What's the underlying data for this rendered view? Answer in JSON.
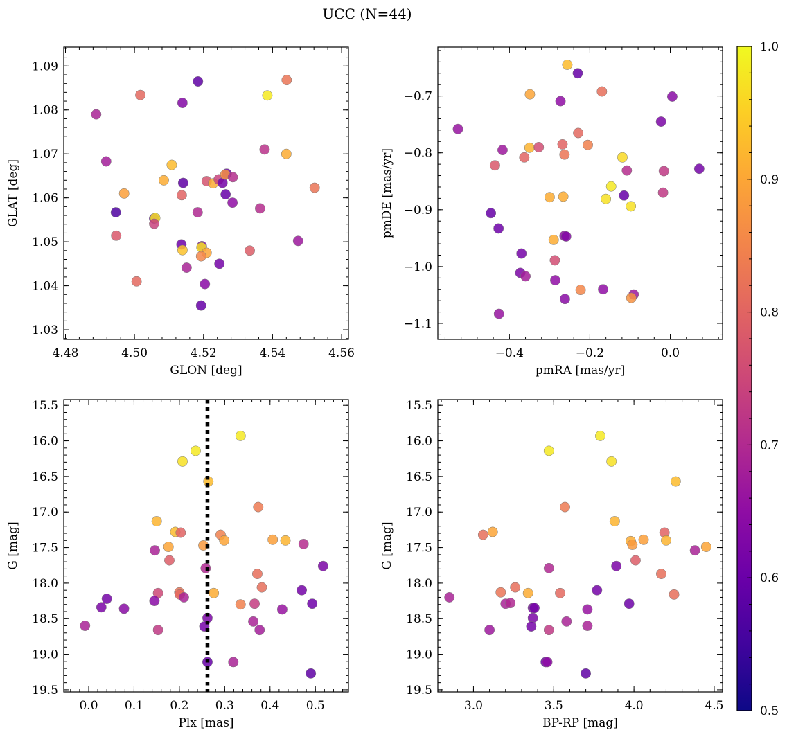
{
  "figure": {
    "title": "UCC (N=44)"
  },
  "colorbar": {
    "range": [
      0.5,
      1.0
    ],
    "ticks": [
      0.5,
      0.6,
      0.7,
      0.8,
      0.9,
      1.0
    ],
    "tick_labels": [
      "0.5",
      "0.6",
      "0.7",
      "0.8",
      "0.9",
      "1.0"
    ],
    "colormap": "plasma"
  },
  "reference_line": {
    "panel": "plx_g",
    "axis": "x",
    "value": 0.262,
    "style": "dotted",
    "color": "#000000"
  },
  "chart_data": [
    {
      "id": "glon_glat",
      "type": "scatter",
      "title": "",
      "xlabel": "GLON [deg]",
      "ylabel": "GLAT [deg]",
      "xlim": [
        4.4795,
        4.562
      ],
      "ylim": [
        1.0278,
        1.0943
      ],
      "x_invert": false,
      "y_invert": false,
      "xticks": [
        4.48,
        4.5,
        4.52,
        4.54,
        4.56
      ],
      "xtick_labels": [
        "4.48",
        "4.50",
        "4.52",
        "4.54",
        "4.56"
      ],
      "yticks": [
        1.03,
        1.04,
        1.05,
        1.06,
        1.07,
        1.08,
        1.09
      ],
      "ytick_labels": [
        "1.03",
        "1.04",
        "1.05",
        "1.06",
        "1.07",
        "1.08",
        "1.09"
      ],
      "points": [
        {
          "x": 4.4889,
          "y": 1.079,
          "c": 0.66
        },
        {
          "x": 4.5017,
          "y": 1.0834,
          "c": 0.79
        },
        {
          "x": 4.5184,
          "y": 1.0865,
          "c": 0.55
        },
        {
          "x": 4.5441,
          "y": 1.0868,
          "c": 0.81
        },
        {
          "x": 4.5385,
          "y": 1.0833,
          "c": 0.98
        },
        {
          "x": 4.5139,
          "y": 1.0816,
          "c": 0.6
        },
        {
          "x": 4.4918,
          "y": 1.0683,
          "c": 0.65
        },
        {
          "x": 4.5108,
          "y": 1.0675,
          "c": 0.92
        },
        {
          "x": 4.5377,
          "y": 1.071,
          "c": 0.69
        },
        {
          "x": 4.544,
          "y": 1.07,
          "c": 0.9
        },
        {
          "x": 4.497,
          "y": 1.061,
          "c": 0.88
        },
        {
          "x": 4.4946,
          "y": 1.0567,
          "c": 0.53
        },
        {
          "x": 4.5085,
          "y": 1.064,
          "c": 0.9
        },
        {
          "x": 4.5141,
          "y": 1.0634,
          "c": 0.55
        },
        {
          "x": 4.5209,
          "y": 1.0638,
          "c": 0.75
        },
        {
          "x": 4.5228,
          "y": 1.0633,
          "c": 0.9
        },
        {
          "x": 4.5244,
          "y": 1.0642,
          "c": 0.72
        },
        {
          "x": 4.5255,
          "y": 1.0634,
          "c": 0.58
        },
        {
          "x": 4.5267,
          "y": 1.0655,
          "c": 0.57
        },
        {
          "x": 4.5263,
          "y": 1.0653,
          "c": 0.86
        },
        {
          "x": 4.5285,
          "y": 1.0647,
          "c": 0.68
        },
        {
          "x": 4.5522,
          "y": 1.0623,
          "c": 0.81
        },
        {
          "x": 4.5057,
          "y": 1.0553,
          "c": 0.55
        },
        {
          "x": 4.506,
          "y": 1.0554,
          "c": 0.97
        },
        {
          "x": 4.5057,
          "y": 1.0541,
          "c": 0.72
        },
        {
          "x": 4.4947,
          "y": 1.0514,
          "c": 0.76
        },
        {
          "x": 4.5137,
          "y": 1.0606,
          "c": 0.78
        },
        {
          "x": 4.5183,
          "y": 1.0567,
          "c": 0.67
        },
        {
          "x": 4.5264,
          "y": 1.0608,
          "c": 0.56
        },
        {
          "x": 4.5284,
          "y": 1.0589,
          "c": 0.62
        },
        {
          "x": 4.5364,
          "y": 1.0576,
          "c": 0.68
        },
        {
          "x": 4.5136,
          "y": 1.0494,
          "c": 0.57
        },
        {
          "x": 4.5139,
          "y": 1.0481,
          "c": 0.93
        },
        {
          "x": 4.5195,
          "y": 1.049,
          "c": 0.6
        },
        {
          "x": 4.5194,
          "y": 1.0487,
          "c": 0.97
        },
        {
          "x": 4.5209,
          "y": 1.0475,
          "c": 0.89
        },
        {
          "x": 4.5193,
          "y": 1.0467,
          "c": 0.84
        },
        {
          "x": 4.5334,
          "y": 1.048,
          "c": 0.77
        },
        {
          "x": 4.5474,
          "y": 1.0502,
          "c": 0.64
        },
        {
          "x": 4.5151,
          "y": 1.0441,
          "c": 0.66
        },
        {
          "x": 4.5246,
          "y": 1.045,
          "c": 0.58
        },
        {
          "x": 4.5006,
          "y": 1.041,
          "c": 0.79
        },
        {
          "x": 4.5204,
          "y": 1.0404,
          "c": 0.61
        },
        {
          "x": 4.5193,
          "y": 1.0355,
          "c": 0.56
        }
      ]
    },
    {
      "id": "pmra_pmde",
      "type": "scatter",
      "title": "",
      "xlabel": "pmRA [mas/yr]",
      "ylabel": "pmDE [mas/yr]",
      "xlim": [
        -0.578,
        0.13
      ],
      "ylim": [
        -1.128,
        -0.614
      ],
      "x_invert": false,
      "y_invert": false,
      "xticks": [
        -0.4,
        -0.2,
        0.0
      ],
      "xtick_labels": [
        "−0.4",
        "−0.2",
        "0.0"
      ],
      "yticks": [
        -1.1,
        -1.0,
        -0.9,
        -0.8,
        -0.7
      ],
      "ytick_labels": [
        "−1.1",
        "−1.0",
        "−0.9",
        "−0.8",
        "−0.7"
      ],
      "points": [
        {
          "x": -0.256,
          "y": -0.645,
          "c": 0.92
        },
        {
          "x": -0.23,
          "y": -0.66,
          "c": 0.56
        },
        {
          "x": -0.349,
          "y": -0.697,
          "c": 0.89
        },
        {
          "x": -0.17,
          "y": -0.692,
          "c": 0.8
        },
        {
          "x": -0.273,
          "y": -0.709,
          "c": 0.62
        },
        {
          "x": 0.005,
          "y": -0.701,
          "c": 0.61
        },
        {
          "x": -0.023,
          "y": -0.745,
          "c": 0.59
        },
        {
          "x": -0.528,
          "y": -0.758,
          "c": 0.63
        },
        {
          "x": -0.229,
          "y": -0.765,
          "c": 0.79
        },
        {
          "x": -0.35,
          "y": -0.791,
          "c": 0.91
        },
        {
          "x": -0.327,
          "y": -0.79,
          "c": 0.74
        },
        {
          "x": -0.268,
          "y": -0.785,
          "c": 0.78
        },
        {
          "x": -0.205,
          "y": -0.786,
          "c": 0.83
        },
        {
          "x": -0.417,
          "y": -0.795,
          "c": 0.64
        },
        {
          "x": -0.363,
          "y": -0.808,
          "c": 0.78
        },
        {
          "x": -0.263,
          "y": -0.803,
          "c": 0.81
        },
        {
          "x": -0.119,
          "y": -0.808,
          "c": 0.96
        },
        {
          "x": -0.436,
          "y": -0.822,
          "c": 0.76
        },
        {
          "x": -0.108,
          "y": -0.831,
          "c": 0.68
        },
        {
          "x": -0.016,
          "y": -0.832,
          "c": 0.7
        },
        {
          "x": 0.072,
          "y": -0.828,
          "c": 0.58
        },
        {
          "x": -0.147,
          "y": -0.859,
          "c": 0.98
        },
        {
          "x": -0.018,
          "y": -0.87,
          "c": 0.7
        },
        {
          "x": -0.3,
          "y": -0.878,
          "c": 0.9
        },
        {
          "x": -0.266,
          "y": -0.877,
          "c": 0.9
        },
        {
          "x": -0.16,
          "y": -0.881,
          "c": 0.97
        },
        {
          "x": -0.115,
          "y": -0.875,
          "c": 0.56
        },
        {
          "x": -0.098,
          "y": -0.894,
          "c": 0.97
        },
        {
          "x": -0.446,
          "y": -0.906,
          "c": 0.56
        },
        {
          "x": -0.427,
          "y": -0.933,
          "c": 0.57
        },
        {
          "x": -0.263,
          "y": -0.946,
          "c": 0.62
        },
        {
          "x": -0.259,
          "y": -0.947,
          "c": 0.6
        },
        {
          "x": -0.29,
          "y": -0.953,
          "c": 0.9
        },
        {
          "x": -0.37,
          "y": -0.977,
          "c": 0.58
        },
        {
          "x": -0.287,
          "y": -0.989,
          "c": 0.74
        },
        {
          "x": -0.373,
          "y": -1.011,
          "c": 0.59
        },
        {
          "x": -0.36,
          "y": -1.017,
          "c": 0.65
        },
        {
          "x": -0.286,
          "y": -1.024,
          "c": 0.62
        },
        {
          "x": -0.223,
          "y": -1.041,
          "c": 0.84
        },
        {
          "x": -0.167,
          "y": -1.04,
          "c": 0.62
        },
        {
          "x": -0.091,
          "y": -1.049,
          "c": 0.64
        },
        {
          "x": -0.097,
          "y": -1.055,
          "c": 0.86
        },
        {
          "x": -0.262,
          "y": -1.057,
          "c": 0.61
        },
        {
          "x": -0.426,
          "y": -1.083,
          "c": 0.63
        }
      ]
    },
    {
      "id": "plx_g",
      "type": "scatter",
      "title": "",
      "xlabel": "Plx [mas]",
      "ylabel": "G [mag]",
      "xlim": [
        -0.055,
        0.573
      ],
      "ylim": [
        19.53,
        15.42
      ],
      "x_invert": false,
      "y_invert": true,
      "xticks": [
        0.0,
        0.1,
        0.2,
        0.3,
        0.4,
        0.5
      ],
      "xtick_labels": [
        "0.0",
        "0.1",
        "0.2",
        "0.3",
        "0.4",
        "0.5"
      ],
      "yticks": [
        15.5,
        16.0,
        16.5,
        17.0,
        17.5,
        18.0,
        18.5,
        19.0,
        19.5
      ],
      "ytick_labels": [
        "15.5",
        "16.0",
        "16.5",
        "17.0",
        "17.5",
        "18.0",
        "18.5",
        "19.0",
        "19.5"
      ],
      "points": [
        {
          "x": 0.335,
          "y": 15.93,
          "c": 0.98
        },
        {
          "x": 0.236,
          "y": 16.14,
          "c": 0.98
        },
        {
          "x": 0.207,
          "y": 16.29,
          "c": 0.97
        },
        {
          "x": 0.264,
          "y": 16.57,
          "c": 0.92
        },
        {
          "x": 0.374,
          "y": 16.93,
          "c": 0.82
        },
        {
          "x": 0.15,
          "y": 17.13,
          "c": 0.91
        },
        {
          "x": 0.191,
          "y": 17.28,
          "c": 0.92
        },
        {
          "x": 0.203,
          "y": 17.29,
          "c": 0.78
        },
        {
          "x": 0.291,
          "y": 17.32,
          "c": 0.83
        },
        {
          "x": 0.299,
          "y": 17.4,
          "c": 0.89
        },
        {
          "x": 0.406,
          "y": 17.39,
          "c": 0.88
        },
        {
          "x": 0.434,
          "y": 17.4,
          "c": 0.91
        },
        {
          "x": 0.474,
          "y": 17.45,
          "c": 0.68
        },
        {
          "x": 0.253,
          "y": 17.47,
          "c": 0.87
        },
        {
          "x": 0.176,
          "y": 17.49,
          "c": 0.89
        },
        {
          "x": 0.146,
          "y": 17.54,
          "c": 0.66
        },
        {
          "x": 0.178,
          "y": 17.68,
          "c": 0.77
        },
        {
          "x": 0.517,
          "y": 17.76,
          "c": 0.59
        },
        {
          "x": 0.258,
          "y": 17.79,
          "c": 0.67
        },
        {
          "x": 0.372,
          "y": 17.87,
          "c": 0.8
        },
        {
          "x": 0.382,
          "y": 18.06,
          "c": 0.8
        },
        {
          "x": 0.47,
          "y": 18.1,
          "c": 0.58
        },
        {
          "x": 0.2,
          "y": 18.13,
          "c": 0.81
        },
        {
          "x": 0.153,
          "y": 18.14,
          "c": 0.73
        },
        {
          "x": 0.276,
          "y": 18.14,
          "c": 0.9
        },
        {
          "x": 0.201,
          "y": 18.16,
          "c": 0.79
        },
        {
          "x": 0.21,
          "y": 18.2,
          "c": 0.66
        },
        {
          "x": 0.04,
          "y": 18.22,
          "c": 0.58
        },
        {
          "x": 0.145,
          "y": 18.25,
          "c": 0.61
        },
        {
          "x": 0.335,
          "y": 18.3,
          "c": 0.83
        },
        {
          "x": 0.366,
          "y": 18.29,
          "c": 0.71
        },
        {
          "x": 0.493,
          "y": 18.29,
          "c": 0.57
        },
        {
          "x": 0.028,
          "y": 18.34,
          "c": 0.59
        },
        {
          "x": 0.078,
          "y": 18.36,
          "c": 0.61
        },
        {
          "x": 0.427,
          "y": 18.37,
          "c": 0.63
        },
        {
          "x": 0.262,
          "y": 18.49,
          "c": 0.59
        },
        {
          "x": 0.363,
          "y": 18.54,
          "c": 0.66
        },
        {
          "x": -0.008,
          "y": 18.6,
          "c": 0.66
        },
        {
          "x": 0.255,
          "y": 18.61,
          "c": 0.58
        },
        {
          "x": 0.153,
          "y": 18.66,
          "c": 0.7
        },
        {
          "x": 0.377,
          "y": 18.66,
          "c": 0.65
        },
        {
          "x": 0.262,
          "y": 19.11,
          "c": 0.56
        },
        {
          "x": 0.319,
          "y": 19.11,
          "c": 0.66
        },
        {
          "x": 0.49,
          "y": 19.27,
          "c": 0.55
        }
      ]
    },
    {
      "id": "bprp_g",
      "type": "scatter",
      "title": "",
      "xlabel": "BP-RP [mag]",
      "ylabel": "G [mag]",
      "xlim": [
        2.778,
        4.552
      ],
      "ylim": [
        19.53,
        15.42
      ],
      "x_invert": false,
      "y_invert": true,
      "xticks": [
        3.0,
        3.5,
        4.0,
        4.5
      ],
      "xtick_labels": [
        "3.0",
        "3.5",
        "4.0",
        "4.5"
      ],
      "yticks": [
        15.5,
        16.0,
        16.5,
        17.0,
        17.5,
        18.0,
        18.5,
        19.0,
        19.5
      ],
      "ytick_labels": [
        "15.5",
        "16.0",
        "16.5",
        "17.0",
        "17.5",
        "18.0",
        "18.5",
        "19.0",
        "19.5"
      ],
      "points": [
        {
          "x": 3.79,
          "y": 15.93,
          "c": 0.98
        },
        {
          "x": 3.47,
          "y": 16.14,
          "c": 0.98
        },
        {
          "x": 3.86,
          "y": 16.29,
          "c": 0.97
        },
        {
          "x": 4.26,
          "y": 16.57,
          "c": 0.92
        },
        {
          "x": 3.57,
          "y": 16.93,
          "c": 0.82
        },
        {
          "x": 3.88,
          "y": 17.13,
          "c": 0.91
        },
        {
          "x": 3.12,
          "y": 17.28,
          "c": 0.89
        },
        {
          "x": 3.06,
          "y": 17.32,
          "c": 0.8
        },
        {
          "x": 4.19,
          "y": 17.29,
          "c": 0.78
        },
        {
          "x": 3.98,
          "y": 17.41,
          "c": 0.9
        },
        {
          "x": 4.06,
          "y": 17.39,
          "c": 0.88
        },
        {
          "x": 4.2,
          "y": 17.4,
          "c": 0.91
        },
        {
          "x": 3.99,
          "y": 17.46,
          "c": 0.87
        },
        {
          "x": 4.45,
          "y": 17.49,
          "c": 0.89
        },
        {
          "x": 4.38,
          "y": 17.54,
          "c": 0.66
        },
        {
          "x": 4.01,
          "y": 17.68,
          "c": 0.77
        },
        {
          "x": 3.89,
          "y": 17.76,
          "c": 0.59
        },
        {
          "x": 3.47,
          "y": 17.79,
          "c": 0.67
        },
        {
          "x": 4.17,
          "y": 17.87,
          "c": 0.8
        },
        {
          "x": 3.26,
          "y": 18.06,
          "c": 0.8
        },
        {
          "x": 3.77,
          "y": 18.1,
          "c": 0.58
        },
        {
          "x": 3.17,
          "y": 18.13,
          "c": 0.81
        },
        {
          "x": 3.54,
          "y": 18.14,
          "c": 0.79
        },
        {
          "x": 3.34,
          "y": 18.14,
          "c": 0.9
        },
        {
          "x": 4.25,
          "y": 18.16,
          "c": 0.8
        },
        {
          "x": 2.85,
          "y": 18.2,
          "c": 0.66
        },
        {
          "x": 3.2,
          "y": 18.29,
          "c": 0.66
        },
        {
          "x": 3.23,
          "y": 18.28,
          "c": 0.67
        },
        {
          "x": 3.97,
          "y": 18.29,
          "c": 0.57
        },
        {
          "x": 3.37,
          "y": 18.35,
          "c": 0.59
        },
        {
          "x": 3.38,
          "y": 18.35,
          "c": 0.58
        },
        {
          "x": 3.71,
          "y": 18.37,
          "c": 0.63
        },
        {
          "x": 3.37,
          "y": 18.49,
          "c": 0.59
        },
        {
          "x": 3.58,
          "y": 18.54,
          "c": 0.66
        },
        {
          "x": 3.36,
          "y": 18.61,
          "c": 0.58
        },
        {
          "x": 3.71,
          "y": 18.6,
          "c": 0.66
        },
        {
          "x": 3.1,
          "y": 18.66,
          "c": 0.64
        },
        {
          "x": 3.47,
          "y": 18.66,
          "c": 0.7
        },
        {
          "x": 3.45,
          "y": 19.11,
          "c": 0.56
        },
        {
          "x": 3.46,
          "y": 19.11,
          "c": 0.62
        },
        {
          "x": 3.7,
          "y": 19.27,
          "c": 0.55
        }
      ]
    }
  ]
}
